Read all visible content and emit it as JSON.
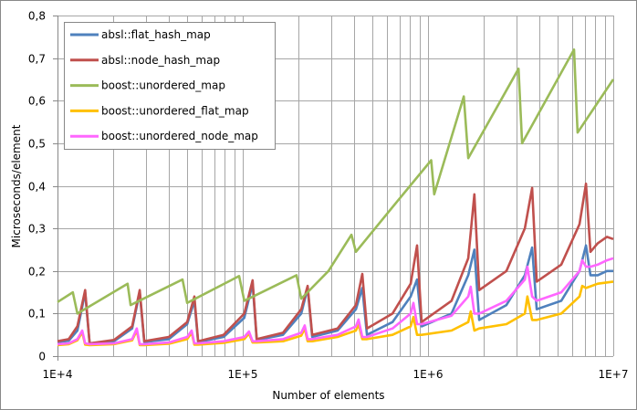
{
  "chart_data": {
    "type": "line",
    "title": "",
    "xlabel": "Number of elements",
    "ylabel": "Microseconds/element",
    "xscale": "log",
    "xlim": [
      10000,
      10000000
    ],
    "ylim": [
      0,
      0.8
    ],
    "x_ticks": [
      {
        "value": 10000,
        "label": "1E+4"
      },
      {
        "value": 100000,
        "label": "1E+5"
      },
      {
        "value": 1000000,
        "label": "1E+6"
      },
      {
        "value": 10000000,
        "label": "1E+7"
      }
    ],
    "y_ticks": [
      {
        "value": 0,
        "label": "0"
      },
      {
        "value": 0.1,
        "label": "0,1"
      },
      {
        "value": 0.2,
        "label": "0,2"
      },
      {
        "value": 0.3,
        "label": "0,3"
      },
      {
        "value": 0.4,
        "label": "0,4"
      },
      {
        "value": 0.5,
        "label": "0,5"
      },
      {
        "value": 0.6,
        "label": "0,6"
      },
      {
        "value": 0.7,
        "label": "0,7"
      },
      {
        "value": 0.8,
        "label": "0,8"
      }
    ],
    "grid": true,
    "legend_position": "top-left",
    "series": [
      {
        "name": "absl::flat_hash_map",
        "color": "#4f81bd",
        "points": [
          [
            10000,
            0.033
          ],
          [
            11500,
            0.036
          ],
          [
            12800,
            0.06
          ],
          [
            14100,
            0.15
          ],
          [
            14900,
            0.03
          ],
          [
            20200,
            0.035
          ],
          [
            25300,
            0.065
          ],
          [
            27800,
            0.15
          ],
          [
            29400,
            0.033
          ],
          [
            39900,
            0.04
          ],
          [
            50100,
            0.075
          ],
          [
            54800,
            0.13
          ],
          [
            57400,
            0.033
          ],
          [
            78800,
            0.045
          ],
          [
            102000,
            0.09
          ],
          [
            113000,
            0.17
          ],
          [
            119000,
            0.038
          ],
          [
            165000,
            0.05
          ],
          [
            207000,
            0.1
          ],
          [
            224000,
            0.16
          ],
          [
            237000,
            0.045
          ],
          [
            325000,
            0.06
          ],
          [
            408000,
            0.11
          ],
          [
            442000,
            0.16
          ],
          [
            468000,
            0.05
          ],
          [
            643000,
            0.08
          ],
          [
            806000,
            0.14
          ],
          [
            873000,
            0.18
          ],
          [
            924000,
            0.07
          ],
          [
            1340000,
            0.1
          ],
          [
            1650000,
            0.19
          ],
          [
            1780000,
            0.25
          ],
          [
            1890000,
            0.085
          ],
          [
            2650000,
            0.12
          ],
          [
            3330000,
            0.19
          ],
          [
            3650000,
            0.255
          ],
          [
            3860000,
            0.11
          ],
          [
            5240000,
            0.13
          ],
          [
            6570000,
            0.2
          ],
          [
            7120000,
            0.26
          ],
          [
            7530000,
            0.19
          ],
          [
            8250000,
            0.19
          ],
          [
            9240000,
            0.2
          ],
          [
            10000000,
            0.2
          ]
        ]
      },
      {
        "name": "absl::node_hash_map",
        "color": "#c0504d",
        "points": [
          [
            10000,
            0.035
          ],
          [
            11500,
            0.04
          ],
          [
            12800,
            0.07
          ],
          [
            14100,
            0.155
          ],
          [
            14900,
            0.03
          ],
          [
            20200,
            0.038
          ],
          [
            25300,
            0.07
          ],
          [
            27800,
            0.155
          ],
          [
            29400,
            0.035
          ],
          [
            39900,
            0.045
          ],
          [
            50100,
            0.08
          ],
          [
            54800,
            0.14
          ],
          [
            57400,
            0.035
          ],
          [
            78800,
            0.05
          ],
          [
            102000,
            0.1
          ],
          [
            113000,
            0.178
          ],
          [
            119000,
            0.04
          ],
          [
            165000,
            0.055
          ],
          [
            207000,
            0.11
          ],
          [
            224000,
            0.165
          ],
          [
            237000,
            0.05
          ],
          [
            325000,
            0.065
          ],
          [
            408000,
            0.12
          ],
          [
            442000,
            0.193
          ],
          [
            468000,
            0.065
          ],
          [
            643000,
            0.1
          ],
          [
            806000,
            0.17
          ],
          [
            873000,
            0.26
          ],
          [
            924000,
            0.08
          ],
          [
            1340000,
            0.13
          ],
          [
            1650000,
            0.23
          ],
          [
            1780000,
            0.38
          ],
          [
            1890000,
            0.155
          ],
          [
            2650000,
            0.2
          ],
          [
            3330000,
            0.3
          ],
          [
            3650000,
            0.395
          ],
          [
            3860000,
            0.175
          ],
          [
            5240000,
            0.215
          ],
          [
            6570000,
            0.31
          ],
          [
            7120000,
            0.405
          ],
          [
            7530000,
            0.245
          ],
          [
            8250000,
            0.265
          ],
          [
            9240000,
            0.28
          ],
          [
            10000000,
            0.275
          ]
        ]
      },
      {
        "name": "boost::unordered_map",
        "color": "#9bbb59",
        "points": [
          [
            10000,
            0.127
          ],
          [
            12100,
            0.15
          ],
          [
            12800,
            0.1
          ],
          [
            23900,
            0.17
          ],
          [
            24800,
            0.12
          ],
          [
            47300,
            0.18
          ],
          [
            50100,
            0.125
          ],
          [
            95600,
            0.188
          ],
          [
            102000,
            0.13
          ],
          [
            195000,
            0.19
          ],
          [
            207000,
            0.135
          ],
          [
            290000,
            0.2
          ],
          [
            386000,
            0.285
          ],
          [
            408000,
            0.245
          ],
          [
            643000,
            0.35
          ],
          [
            1040000,
            0.46
          ],
          [
            1080000,
            0.38
          ],
          [
            1560000,
            0.61
          ],
          [
            1650000,
            0.465
          ],
          [
            3080000,
            0.675
          ],
          [
            3220000,
            0.5
          ],
          [
            6140000,
            0.72
          ],
          [
            6420000,
            0.525
          ],
          [
            10000000,
            0.65
          ]
        ]
      },
      {
        "name": "boost::unordered_flat_map",
        "color": "#ffc000",
        "points": [
          [
            10000,
            0.026
          ],
          [
            11500,
            0.028
          ],
          [
            12800,
            0.037
          ],
          [
            13600,
            0.056
          ],
          [
            14100,
            0.027
          ],
          [
            14900,
            0.026
          ],
          [
            20200,
            0.028
          ],
          [
            25300,
            0.037
          ],
          [
            26800,
            0.06
          ],
          [
            27800,
            0.026
          ],
          [
            29400,
            0.026
          ],
          [
            39900,
            0.029
          ],
          [
            50100,
            0.04
          ],
          [
            53000,
            0.055
          ],
          [
            54800,
            0.027
          ],
          [
            57400,
            0.027
          ],
          [
            78800,
            0.031
          ],
          [
            102000,
            0.04
          ],
          [
            108000,
            0.053
          ],
          [
            113000,
            0.032
          ],
          [
            119000,
            0.032
          ],
          [
            165000,
            0.035
          ],
          [
            207000,
            0.048
          ],
          [
            216000,
            0.065
          ],
          [
            224000,
            0.035
          ],
          [
            237000,
            0.035
          ],
          [
            325000,
            0.045
          ],
          [
            408000,
            0.06
          ],
          [
            422000,
            0.075
          ],
          [
            442000,
            0.04
          ],
          [
            468000,
            0.04
          ],
          [
            643000,
            0.05
          ],
          [
            806000,
            0.07
          ],
          [
            834000,
            0.092
          ],
          [
            873000,
            0.05
          ],
          [
            924000,
            0.05
          ],
          [
            1340000,
            0.06
          ],
          [
            1650000,
            0.08
          ],
          [
            1700000,
            0.105
          ],
          [
            1780000,
            0.06
          ],
          [
            1890000,
            0.065
          ],
          [
            2650000,
            0.075
          ],
          [
            3330000,
            0.1
          ],
          [
            3440000,
            0.14
          ],
          [
            3650000,
            0.085
          ],
          [
            3860000,
            0.085
          ],
          [
            5240000,
            0.1
          ],
          [
            6570000,
            0.14
          ],
          [
            6800000,
            0.165
          ],
          [
            7120000,
            0.16
          ],
          [
            8250000,
            0.17
          ],
          [
            10000000,
            0.175
          ]
        ]
      },
      {
        "name": "boost::unordered_node_map",
        "color": "#ff66ff",
        "points": [
          [
            10000,
            0.028
          ],
          [
            11500,
            0.03
          ],
          [
            12800,
            0.04
          ],
          [
            13600,
            0.06
          ],
          [
            14100,
            0.03
          ],
          [
            14900,
            0.028
          ],
          [
            20200,
            0.03
          ],
          [
            25300,
            0.04
          ],
          [
            26800,
            0.065
          ],
          [
            27800,
            0.028
          ],
          [
            29400,
            0.028
          ],
          [
            39900,
            0.032
          ],
          [
            50100,
            0.045
          ],
          [
            53000,
            0.06
          ],
          [
            54800,
            0.03
          ],
          [
            57400,
            0.03
          ],
          [
            78800,
            0.035
          ],
          [
            102000,
            0.045
          ],
          [
            108000,
            0.058
          ],
          [
            113000,
            0.035
          ],
          [
            119000,
            0.035
          ],
          [
            165000,
            0.04
          ],
          [
            207000,
            0.055
          ],
          [
            216000,
            0.072
          ],
          [
            224000,
            0.04
          ],
          [
            237000,
            0.04
          ],
          [
            325000,
            0.05
          ],
          [
            408000,
            0.07
          ],
          [
            422000,
            0.086
          ],
          [
            442000,
            0.045
          ],
          [
            468000,
            0.045
          ],
          [
            643000,
            0.065
          ],
          [
            806000,
            0.1
          ],
          [
            834000,
            0.125
          ],
          [
            873000,
            0.075
          ],
          [
            924000,
            0.075
          ],
          [
            1340000,
            0.095
          ],
          [
            1650000,
            0.14
          ],
          [
            1700000,
            0.163
          ],
          [
            1780000,
            0.1
          ],
          [
            1890000,
            0.1
          ],
          [
            2650000,
            0.13
          ],
          [
            3330000,
            0.18
          ],
          [
            3440000,
            0.21
          ],
          [
            3650000,
            0.14
          ],
          [
            3860000,
            0.13
          ],
          [
            5240000,
            0.15
          ],
          [
            6570000,
            0.2
          ],
          [
            6800000,
            0.225
          ],
          [
            7120000,
            0.21
          ],
          [
            7530000,
            0.21
          ],
          [
            8250000,
            0.215
          ],
          [
            9240000,
            0.225
          ],
          [
            10000000,
            0.23
          ]
        ]
      }
    ]
  }
}
